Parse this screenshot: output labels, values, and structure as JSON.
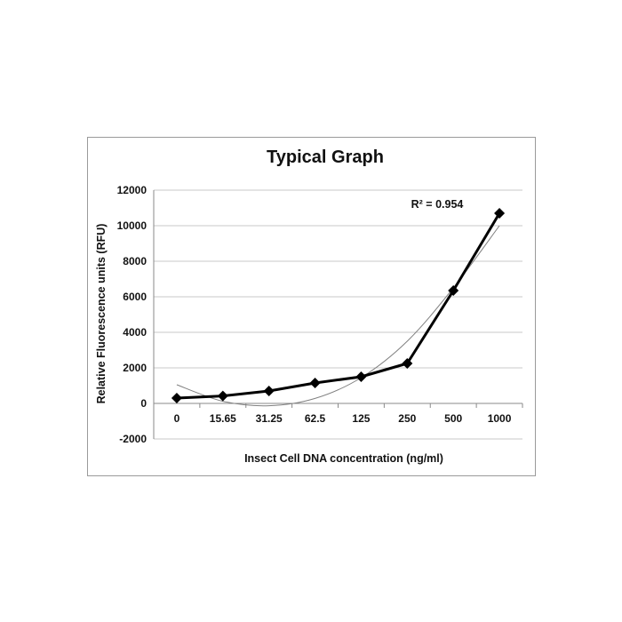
{
  "chart_data": {
    "type": "line",
    "title": "Typical Graph",
    "xlabel": "Insect Cell DNA concentration (ng/ml)",
    "ylabel": "Relative Fluorescence units (RFU)",
    "categories": [
      "0",
      "15.65",
      "31.25",
      "62.5",
      "125",
      "250",
      "500",
      "1000"
    ],
    "series": [
      {
        "values": [
          300,
          420,
          700,
          1150,
          1500,
          2250,
          6350,
          10700
        ],
        "color": "#000000",
        "marker": "diamond"
      }
    ],
    "trendline": {
      "type": "polynomial",
      "color": "#808080",
      "values": [
        1050,
        120,
        -130,
        280,
        1450,
        3500,
        6500,
        10000
      ]
    },
    "annotation": "R² = 0.954",
    "yticks": [
      -2000,
      0,
      2000,
      4000,
      6000,
      8000,
      10000,
      12000
    ],
    "ylim": [
      -2000,
      12000
    ],
    "grid": true,
    "legend": "none"
  }
}
